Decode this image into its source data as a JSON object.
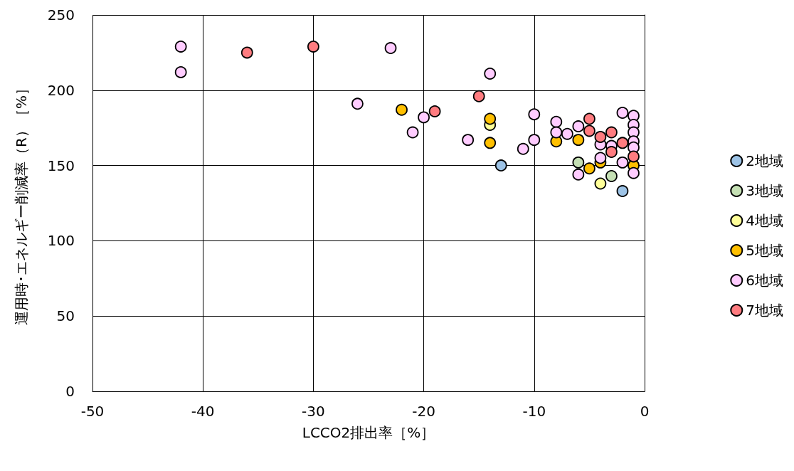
{
  "chart_data": {
    "type": "scatter",
    "xlabel": "LCCO2排出率［%］",
    "ylabel": "運用時･エネルギー削減率（R）［%］",
    "xlim": [
      -50,
      0
    ],
    "xticks": [
      -50,
      -40,
      -30,
      -20,
      -10,
      0
    ],
    "ylim": [
      0,
      250
    ],
    "yticks": [
      0,
      50,
      100,
      150,
      200,
      250
    ],
    "grid": true,
    "legend": "right",
    "marker": "circle",
    "series": [
      {
        "name": "2地域",
        "color": "#9dc3e6",
        "x": [
          -13,
          -2
        ],
        "values": [
          150,
          133
        ]
      },
      {
        "name": "3地域",
        "color": "#c5e0b4",
        "x": [
          -6,
          -3
        ],
        "values": [
          152,
          143
        ]
      },
      {
        "name": "4地域",
        "color": "#ffff99",
        "x": [
          -14,
          -4
        ],
        "values": [
          177,
          138
        ]
      },
      {
        "name": "5地域",
        "color": "#ffc000",
        "x": [
          -22,
          -14,
          -14,
          -8,
          -6,
          -5,
          -4,
          -1
        ],
        "values": [
          187,
          181,
          165,
          166,
          167,
          148,
          152,
          150
        ]
      },
      {
        "name": "6地域",
        "color": "#ffccff",
        "x": [
          -42,
          -42,
          -26,
          -23,
          -21,
          -20,
          -16,
          -14,
          -11,
          -10,
          -10,
          -8,
          -8,
          -7,
          -6,
          -6,
          -4,
          -4,
          -3,
          -2,
          -2,
          -1,
          -1,
          -1,
          -1,
          -1,
          -1
        ],
        "values": [
          229,
          212,
          191,
          228,
          172,
          182,
          167,
          211,
          161,
          184,
          167,
          179,
          172,
          171,
          176,
          144,
          164,
          155,
          163,
          185,
          152,
          183,
          177,
          172,
          166,
          162,
          145
        ]
      },
      {
        "name": "7地域",
        "color": "#ff7c80",
        "x": [
          -36,
          -30,
          -15,
          -19,
          -5,
          -5,
          -4,
          -3,
          -3,
          -1,
          -2
        ],
        "values": [
          225,
          229,
          196,
          186,
          181,
          173,
          169,
          172,
          159,
          156,
          165
        ]
      }
    ]
  }
}
